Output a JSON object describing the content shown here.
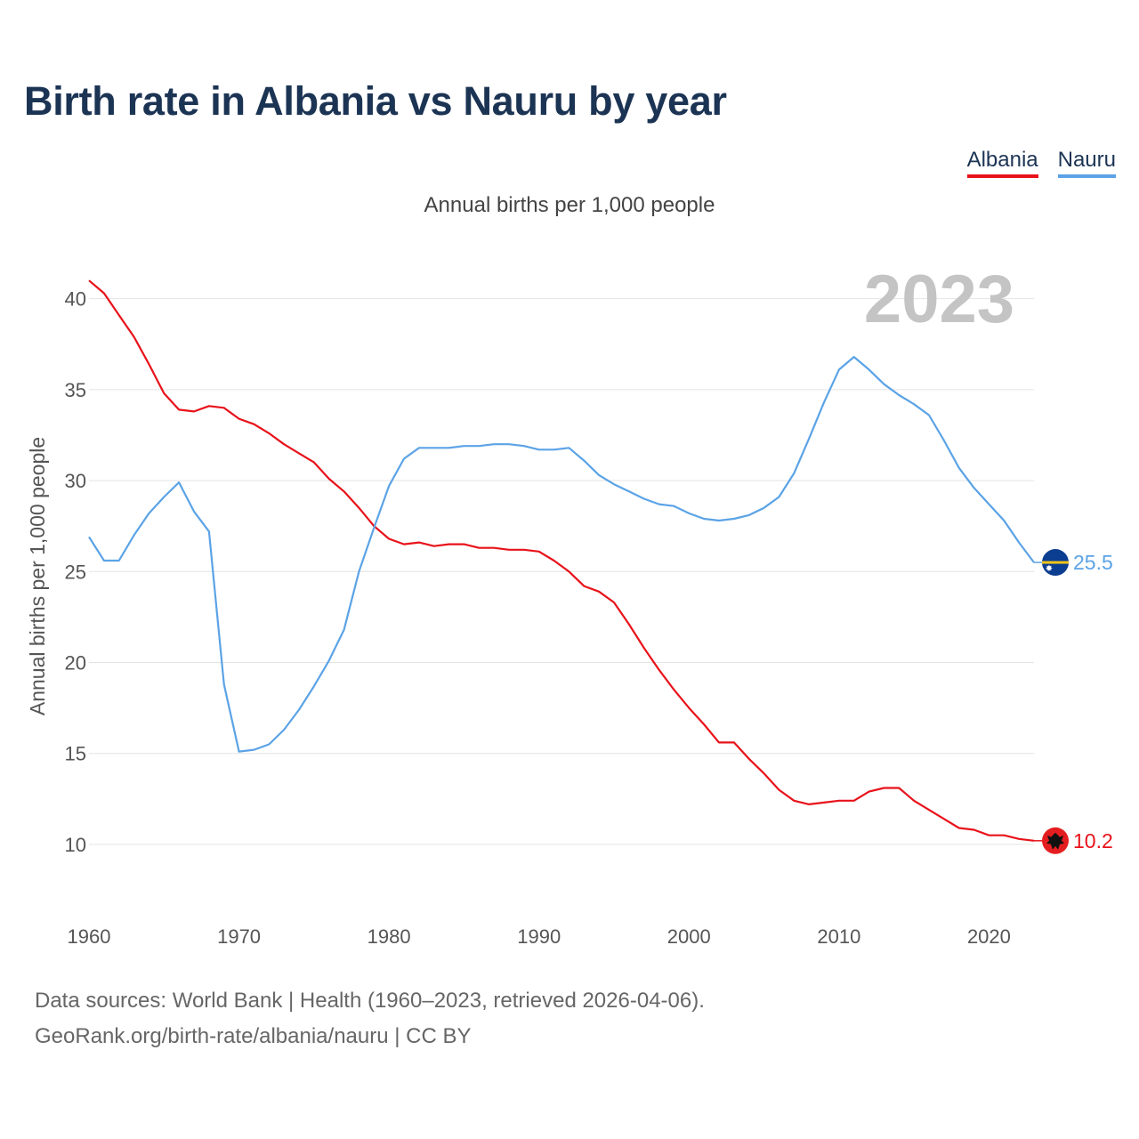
{
  "chart_data": {
    "type": "line",
    "title": "Birth rate in Albania vs Nauru by year",
    "subtitle": "Annual births per 1,000 people",
    "ylabel": "Annual births per 1,000 people",
    "xlabel": "",
    "year_label": "2023",
    "xlim": [
      1960,
      2023
    ],
    "ylim": [
      7.5,
      41.5
    ],
    "x_ticks": [
      1960,
      1970,
      1980,
      1990,
      2000,
      2010,
      2020
    ],
    "y_ticks": [
      10,
      15,
      20,
      25,
      30,
      35,
      40
    ],
    "grid": true,
    "legend_position": "top-right",
    "series": [
      {
        "name": "Albania",
        "color": "#e8121a",
        "end_label": "10.2",
        "flag": "albania-flag-icon",
        "x": [
          1960,
          1961,
          1962,
          1963,
          1964,
          1965,
          1966,
          1967,
          1968,
          1969,
          1970,
          1971,
          1972,
          1973,
          1974,
          1975,
          1976,
          1977,
          1978,
          1979,
          1980,
          1981,
          1982,
          1983,
          1984,
          1985,
          1986,
          1987,
          1988,
          1989,
          1990,
          1991,
          1992,
          1993,
          1994,
          1995,
          1996,
          1997,
          1998,
          1999,
          2000,
          2001,
          2002,
          2003,
          2004,
          2005,
          2006,
          2007,
          2008,
          2009,
          2010,
          2011,
          2012,
          2013,
          2014,
          2015,
          2016,
          2017,
          2018,
          2019,
          2020,
          2021,
          2022,
          2023
        ],
        "values": [
          41.0,
          40.3,
          39.1,
          37.9,
          36.4,
          34.8,
          33.9,
          33.8,
          34.1,
          34.0,
          33.4,
          33.1,
          32.6,
          32.0,
          31.5,
          31.0,
          30.1,
          29.4,
          28.5,
          27.5,
          26.8,
          26.5,
          26.6,
          26.4,
          26.5,
          26.5,
          26.3,
          26.3,
          26.2,
          26.2,
          26.1,
          25.6,
          25.0,
          24.2,
          23.9,
          23.3,
          22.1,
          20.8,
          19.6,
          18.5,
          17.5,
          16.6,
          15.6,
          15.6,
          14.7,
          13.9,
          13.0,
          12.4,
          12.2,
          12.3,
          12.4,
          12.4,
          12.9,
          13.1,
          13.1,
          12.4,
          11.9,
          11.4,
          10.9,
          10.8,
          10.5,
          10.5,
          10.3,
          10.2
        ]
      },
      {
        "name": "Nauru",
        "color": "#5ba3e6",
        "end_label": "25.5",
        "flag": "nauru-flag-icon",
        "x": [
          1960,
          1961,
          1962,
          1963,
          1964,
          1965,
          1966,
          1967,
          1968,
          1969,
          1970,
          1971,
          1972,
          1973,
          1974,
          1975,
          1976,
          1977,
          1978,
          1979,
          1980,
          1981,
          1982,
          1983,
          1984,
          1985,
          1986,
          1987,
          1988,
          1989,
          1990,
          1991,
          1992,
          1993,
          1994,
          1995,
          1996,
          1997,
          1998,
          1999,
          2000,
          2001,
          2002,
          2003,
          2004,
          2005,
          2006,
          2007,
          2008,
          2009,
          2010,
          2011,
          2012,
          2013,
          2014,
          2015,
          2016,
          2017,
          2018,
          2019,
          2020,
          2021,
          2022,
          2023
        ],
        "values": [
          26.9,
          25.6,
          25.6,
          27.0,
          28.2,
          29.1,
          29.9,
          28.3,
          27.2,
          18.8,
          15.1,
          15.2,
          15.5,
          16.3,
          17.4,
          18.7,
          20.1,
          21.8,
          25.0,
          27.4,
          29.7,
          31.2,
          31.8,
          31.8,
          31.8,
          31.9,
          31.9,
          32.0,
          32.0,
          31.9,
          31.7,
          31.7,
          31.8,
          31.1,
          30.3,
          29.8,
          29.4,
          29.0,
          28.7,
          28.6,
          28.2,
          27.9,
          27.8,
          27.9,
          28.1,
          28.5,
          29.1,
          30.4,
          32.3,
          34.3,
          36.1,
          36.8,
          36.1,
          35.3,
          34.7,
          34.2,
          33.6,
          32.2,
          30.7,
          29.6,
          28.7,
          27.8,
          26.6,
          25.5
        ]
      }
    ]
  },
  "footer": {
    "line1": "Data sources: World Bank | Health (1960–2023, retrieved 2026-04-06).",
    "line2": "GeoRank.org/birth-rate/albania/nauru | CC BY"
  }
}
